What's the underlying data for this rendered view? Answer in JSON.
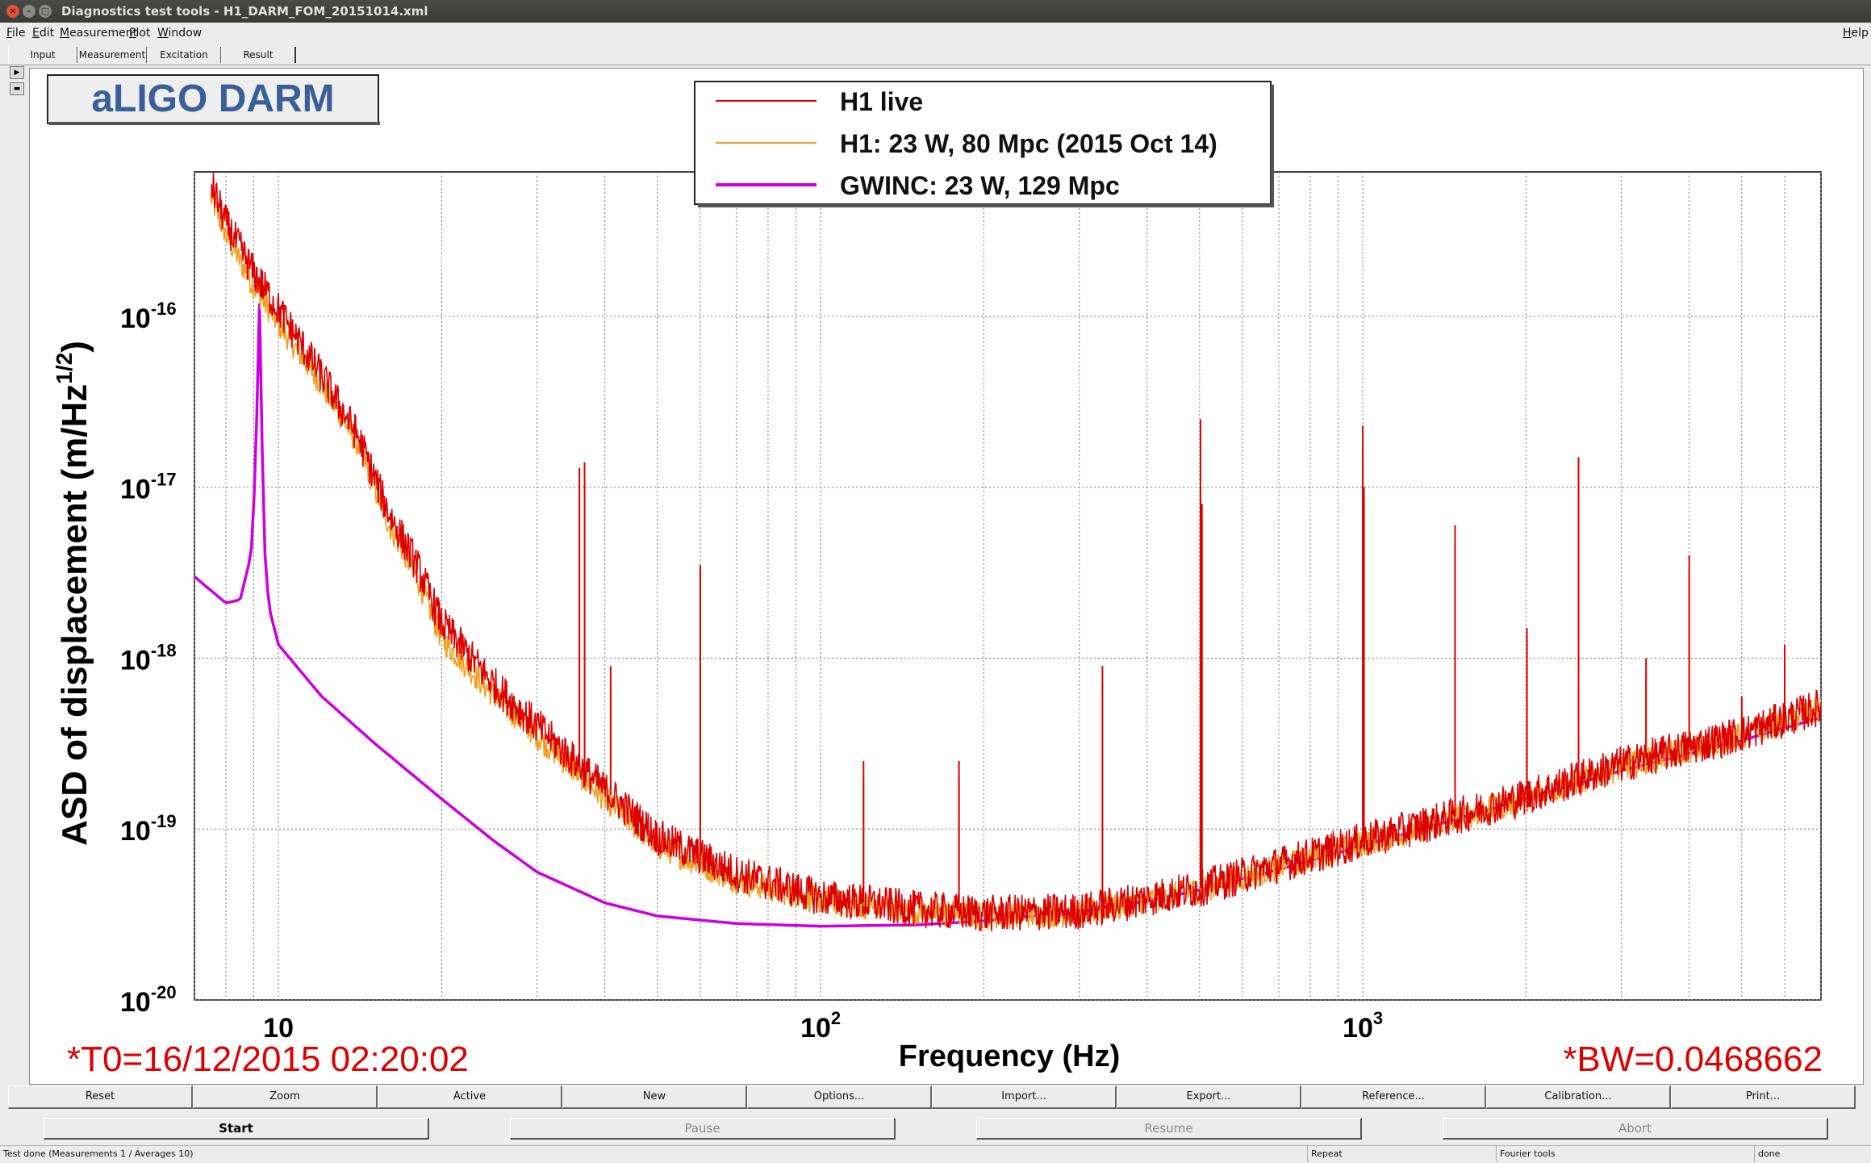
{
  "window": {
    "title": "Diagnostics test tools - H1_DARM_FOM_20151014.xml"
  },
  "menu": {
    "items": [
      "File",
      "Edit",
      "Measurement",
      "Plot",
      "Window"
    ],
    "help": "Help"
  },
  "tabs": [
    {
      "label": "Input"
    },
    {
      "label": "Measurement"
    },
    {
      "label": "Excitation"
    },
    {
      "label": "Result"
    }
  ],
  "plot": {
    "title_box": "aLIGO DARM",
    "legend": [
      {
        "label": "H1 live",
        "color": "#dd0000"
      },
      {
        "label": "H1: 23 W, 80 Mpc (2015 Oct 14)",
        "color": "#f0a020"
      },
      {
        "label": "GWINC: 23 W, 129 Mpc",
        "color": "#cc00dd"
      }
    ],
    "ylabel_main": "ASD of displacement (m/Hz",
    "ylabel_sup": "1/2",
    "ylabel_close": ")",
    "xlabel": "Frequency (Hz)",
    "t0": "*T0=16/12/2015 02:20:02",
    "bw": "*BW=0.0468662",
    "xticks": [
      {
        "base": "10",
        "exp": ""
      },
      {
        "base": "10",
        "exp": "2"
      },
      {
        "base": "10",
        "exp": "3"
      }
    ],
    "yticks": [
      {
        "base": "10",
        "exp": "-16"
      },
      {
        "base": "10",
        "exp": "-17"
      },
      {
        "base": "10",
        "exp": "-18"
      },
      {
        "base": "10",
        "exp": "-19"
      },
      {
        "base": "10",
        "exp": "-20"
      }
    ]
  },
  "chart_data": {
    "type": "line",
    "title": "aLIGO DARM",
    "xlabel": "Frequency (Hz)",
    "ylabel": "ASD of displacement (m/Hz^1/2)",
    "xscale": "log",
    "yscale": "log",
    "xlim": [
      7.0,
      7000
    ],
    "ylim": [
      1e-20,
      7e-16
    ],
    "grid": true,
    "legend_position": "top-center",
    "series": [
      {
        "name": "GWINC: 23 W, 129 Mpc",
        "x": [
          7,
          8,
          8.5,
          8.9,
          9.1,
          9.2,
          9.4,
          9.6,
          10,
          12,
          15,
          20,
          25,
          30,
          40,
          50,
          70,
          100,
          150,
          200,
          300,
          400,
          500,
          700,
          1000,
          1500,
          2000,
          3000,
          5000,
          7000
        ],
        "y": [
          3e-18,
          2.1e-18,
          2.2e-18,
          4e-18,
          1.5e-17,
          2e-16,
          5e-18,
          2e-18,
          1.2e-18,
          6e-19,
          3.2e-19,
          1.5e-19,
          8.5e-20,
          5.6e-20,
          3.7e-20,
          3.1e-20,
          2.8e-20,
          2.7e-20,
          2.75e-20,
          2.9e-20,
          3.3e-20,
          3.8e-20,
          4.4e-20,
          5.8e-20,
          8e-20,
          1.15e-19,
          1.5e-19,
          2.2e-19,
          3.3e-19,
          4.5e-19
        ]
      },
      {
        "name": "H1: 23 W, 80 Mpc (2015 Oct 14)",
        "x": [
          7.5,
          8,
          9,
          10,
          12,
          14,
          16,
          18,
          20,
          25,
          30,
          40,
          50,
          70,
          100,
          150,
          200,
          300,
          500,
          700,
          1000,
          1500,
          2000,
          3000,
          5000,
          7000
        ],
        "y": [
          5e-16,
          3e-16,
          1.5e-16,
          9e-17,
          4e-17,
          1.8e-17,
          6e-18,
          3e-18,
          1.3e-18,
          6e-19,
          3.5e-19,
          1.5e-19,
          8e-20,
          5e-20,
          3.8e-20,
          3.3e-20,
          3.1e-20,
          3.2e-20,
          4.4e-20,
          6e-20,
          8.2e-20,
          1.15e-19,
          1.5e-19,
          2.3e-19,
          3.5e-19,
          5e-19
        ]
      },
      {
        "name": "H1 live",
        "x": [
          7.5,
          8,
          9,
          10,
          12,
          14,
          16,
          18,
          20,
          25,
          30,
          40,
          50,
          70,
          100,
          150,
          200,
          300,
          500,
          700,
          1000,
          1500,
          2000,
          3000,
          5000,
          7000
        ],
        "y": [
          6e-16,
          3.5e-16,
          1.8e-16,
          1.1e-16,
          4.5e-17,
          2e-17,
          7e-18,
          3.5e-18,
          1.6e-18,
          7e-19,
          4e-19,
          1.7e-19,
          9e-20,
          5.5e-20,
          4e-20,
          3.4e-20,
          3.2e-20,
          3.3e-20,
          4.5e-20,
          6.2e-20,
          8.5e-20,
          1.2e-19,
          1.55e-19,
          2.4e-19,
          3.6e-19,
          5.2e-19
        ]
      }
    ],
    "lines_hz": [
      {
        "f": 35.9,
        "h": 1.3e-17
      },
      {
        "f": 36.7,
        "h": 1.4e-17
      },
      {
        "f": 41,
        "h": 9e-19
      },
      {
        "f": 60,
        "h": 3.5e-18
      },
      {
        "f": 120,
        "h": 2.5e-19
      },
      {
        "f": 180,
        "h": 2.5e-19
      },
      {
        "f": 331,
        "h": 9e-19
      },
      {
        "f": 502,
        "h": 2.5e-17
      },
      {
        "f": 505,
        "h": 8e-18
      },
      {
        "f": 1000,
        "h": 2.3e-17
      },
      {
        "f": 1005,
        "h": 1e-17
      },
      {
        "f": 1480,
        "h": 6e-18
      },
      {
        "f": 2008,
        "h": 1.5e-18
      },
      {
        "f": 2500,
        "h": 1.5e-17
      },
      {
        "f": 3330,
        "h": 1e-18
      },
      {
        "f": 4000,
        "h": 4e-18
      },
      {
        "f": 5000,
        "h": 6e-19
      },
      {
        "f": 6000,
        "h": 1.2e-18
      }
    ]
  },
  "buttons": [
    {
      "label": "Reset"
    },
    {
      "label": "Zoom"
    },
    {
      "label": "Active"
    },
    {
      "label": "New"
    },
    {
      "label": "Options..."
    },
    {
      "label": "Import..."
    },
    {
      "label": "Export..."
    },
    {
      "label": "Reference..."
    },
    {
      "label": "Calibration..."
    },
    {
      "label": "Print..."
    }
  ],
  "run_buttons": [
    {
      "label": "Start",
      "enabled": true
    },
    {
      "label": "Pause",
      "enabled": false
    },
    {
      "label": "Resume",
      "enabled": false
    },
    {
      "label": "Abort",
      "enabled": false
    }
  ],
  "status": {
    "main": "Test done (Measurements 1 / Averages 10)",
    "mode": "Repeat",
    "tool": "Fourier tools",
    "state": "done"
  }
}
